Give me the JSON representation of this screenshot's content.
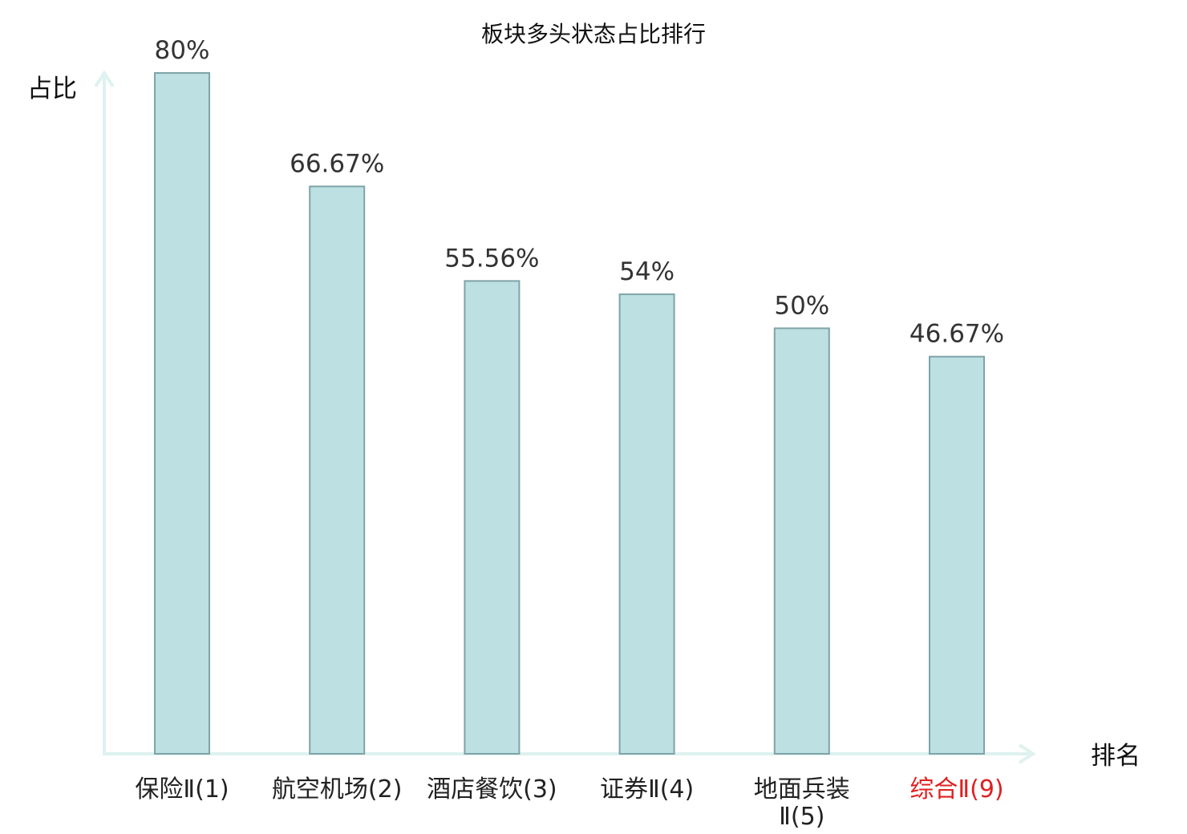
{
  "chart_data": {
    "type": "bar",
    "title": "板块多头状态占比排行",
    "ylabel": "占比",
    "xlabel": "排名",
    "categories": [
      "保险Ⅱ(1)",
      "航空机场(2)",
      "酒店餐饮(3)",
      "证券Ⅱ(4)",
      "地面兵装Ⅱ(5)",
      "综合Ⅱ(9)"
    ],
    "category_lines": [
      [
        "保险Ⅱ(1)"
      ],
      [
        "航空机场(2)"
      ],
      [
        "酒店餐饮(3)"
      ],
      [
        "证券Ⅱ(4)"
      ],
      [
        "地面兵装",
        "Ⅱ(5)"
      ],
      [
        "综合Ⅱ(9)"
      ]
    ],
    "values": [
      80,
      66.67,
      55.56,
      54,
      50,
      46.67
    ],
    "value_labels": [
      "80%",
      "66.67%",
      "55.56%",
      "54%",
      "50%",
      "46.67%"
    ],
    "highlight_index": 5,
    "ylim": [
      0,
      80
    ],
    "grid": false,
    "colors": {
      "bar_fill": "#bde0e3",
      "bar_stroke": "#7fa3a8",
      "axis": "#def2ef",
      "highlight_text": "#e02020"
    }
  }
}
